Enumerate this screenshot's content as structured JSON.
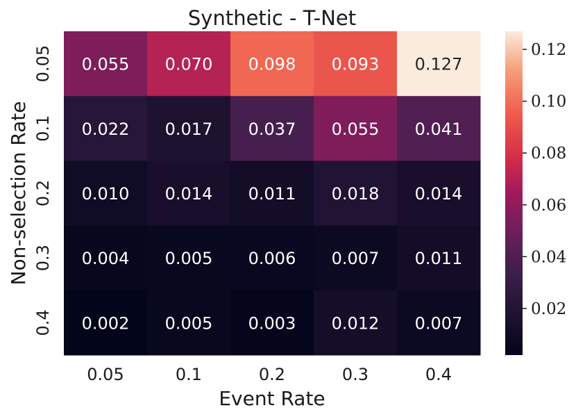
{
  "chart_data": {
    "type": "heatmap",
    "title": "Synthetic - T-Net",
    "xlabel": "Event Rate",
    "ylabel": "Non-selection Rate",
    "x_categories": [
      "0.05",
      "0.1",
      "0.2",
      "0.3",
      "0.4"
    ],
    "y_categories": [
      "0.05",
      "0.1",
      "0.2",
      "0.3",
      "0.4"
    ],
    "values": [
      [
        "0.055",
        "0.070",
        "0.098",
        "0.093",
        "0.127"
      ],
      [
        "0.022",
        "0.017",
        "0.037",
        "0.055",
        "0.041"
      ],
      [
        "0.010",
        "0.014",
        "0.011",
        "0.018",
        "0.014"
      ],
      [
        "0.004",
        "0.005",
        "0.006",
        "0.007",
        "0.011"
      ],
      [
        "0.002",
        "0.005",
        "0.003",
        "0.012",
        "0.007"
      ]
    ],
    "colormap": "rocket",
    "colorbar": {
      "range": [
        0.002,
        0.127
      ],
      "ticks": [
        "0.02",
        "0.04",
        "0.06",
        "0.08",
        "0.10",
        "0.12"
      ]
    },
    "grid": false,
    "legend": "colorbar-right"
  }
}
